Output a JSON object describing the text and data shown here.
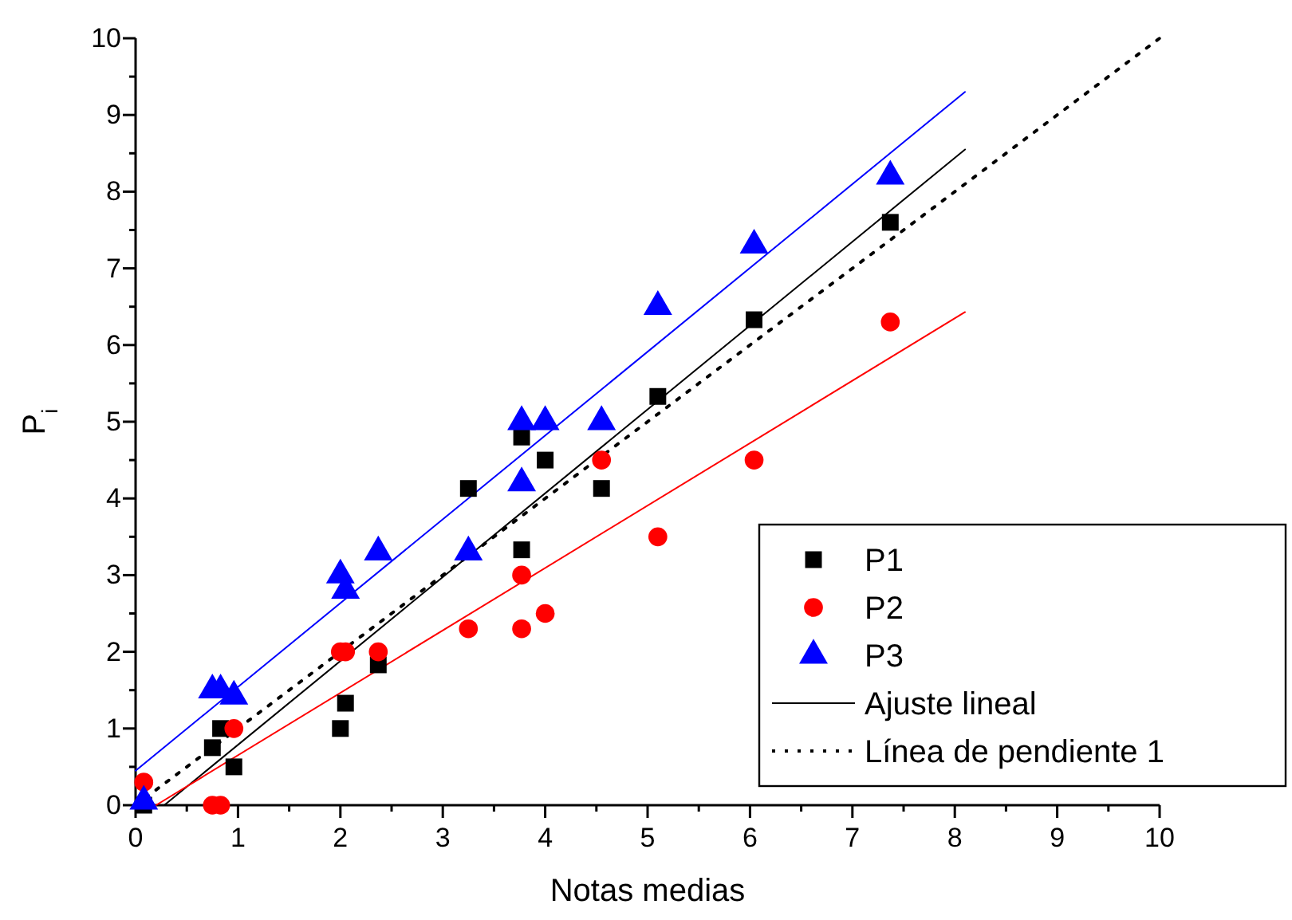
{
  "chart_data": {
    "type": "scatter",
    "xlabel": "Notas medias",
    "ylabel": "P$_{i}$",
    "xlim": [
      0,
      10
    ],
    "ylim": [
      0,
      10
    ],
    "xticks": [
      0,
      {
        "value": 0.5,
        "label": null
      },
      1,
      {
        "value": 1.5,
        "label": null
      },
      2,
      {
        "value": 2.5,
        "label": null
      },
      3,
      {
        "value": 3.5,
        "label": null
      },
      4,
      {
        "value": 4.5,
        "label": null
      },
      5,
      {
        "value": 5.5,
        "label": null
      },
      6,
      {
        "value": 6.5,
        "label": null
      },
      7,
      {
        "value": 7.5,
        "label": null
      },
      8,
      {
        "value": 8.5,
        "label": null
      },
      9,
      {
        "value": 9.5,
        "label": null
      },
      10
    ],
    "yticks": [
      0,
      {
        "value": 0.5,
        "label": null
      },
      1,
      {
        "value": 1.5,
        "label": null
      },
      2,
      {
        "value": 2.5,
        "label": null
      },
      3,
      {
        "value": 3.5,
        "label": null
      },
      4,
      {
        "value": 4.5,
        "label": null
      },
      5,
      {
        "value": 5.5,
        "label": null
      },
      6,
      {
        "value": 6.5,
        "label": null
      },
      7,
      {
        "value": 7.5,
        "label": null
      },
      8,
      {
        "value": 8.5,
        "label": null
      },
      9,
      {
        "value": 9.5,
        "label": null
      },
      10
    ],
    "grid": false,
    "legend": "bottom right",
    "series": [
      {
        "name": "P1",
        "type": "scatter",
        "marker": "square",
        "color": "#000000",
        "x": [
          0.08,
          0.75,
          0.83,
          0.96,
          2.0,
          2.05,
          2.37,
          3.25,
          3.77,
          3.77,
          4.0,
          4.55,
          5.1,
          6.04,
          7.37
        ],
        "values": [
          0,
          0.75,
          1.0,
          0.5,
          1.0,
          1.33,
          1.83,
          4.13,
          4.8,
          3.33,
          4.5,
          4.13,
          5.33,
          6.33,
          7.6
        ]
      },
      {
        "name": "P2",
        "type": "scatter",
        "marker": "circle",
        "color": "#ff0000",
        "x": [
          0.08,
          0.75,
          0.83,
          0.96,
          2.0,
          2.05,
          2.37,
          3.25,
          3.77,
          3.77,
          4.0,
          4.55,
          5.1,
          6.04,
          7.37
        ],
        "values": [
          0.3,
          0,
          0,
          1.0,
          2.0,
          2.0,
          2.0,
          2.3,
          3.0,
          2.3,
          2.5,
          4.5,
          3.5,
          4.5,
          6.3
        ]
      },
      {
        "name": "P3",
        "type": "scatter",
        "marker": "triangle",
        "color": "#0000ff",
        "x": [
          0.08,
          0.75,
          0.83,
          0.96,
          2.0,
          2.05,
          2.37,
          3.25,
          3.77,
          3.77,
          4.0,
          4.55,
          5.1,
          6.04,
          7.37
        ],
        "values": [
          0.05,
          1.5,
          1.5,
          1.42,
          3.0,
          2.8,
          3.3,
          3.3,
          5.0,
          4.2,
          5.0,
          5.0,
          6.5,
          7.3,
          8.2
        ]
      },
      {
        "name": "Ajuste lineal",
        "type": "line",
        "line_style": "solid",
        "marker": "none",
        "color": "#000000",
        "x": [
          0.28,
          8.1
        ],
        "values": [
          0,
          8.55
        ]
      },
      {
        "type": "line",
        "line_style": "solid",
        "marker": "none",
        "color": "#ff0000",
        "x": [
          0.2,
          8.1
        ],
        "values": [
          0,
          6.43
        ]
      },
      {
        "type": "line",
        "line_style": "solid",
        "marker": "none",
        "color": "#0000ff",
        "x": [
          0,
          8.1
        ],
        "values": [
          0.45,
          9.3
        ]
      },
      {
        "name": "Línea de pendiente 1",
        "type": "line",
        "line_style": "dotted",
        "marker": "none",
        "color": "#000000",
        "x": [
          0,
          10
        ],
        "values": [
          0,
          10
        ]
      }
    ]
  }
}
